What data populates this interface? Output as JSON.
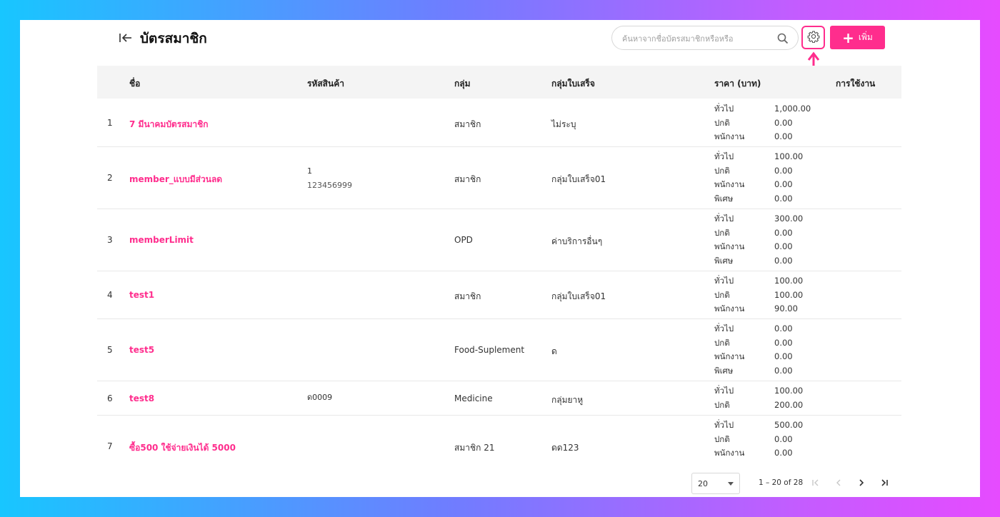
{
  "header": {
    "title": "บัตรสมาชิก",
    "search_placeholder": "ค้นหาจากชื่อบัตรสมาชิกหรือหรือ",
    "add_label": "เพิ่ม"
  },
  "columns": {
    "name": "ชื่อ",
    "code": "รหัสสินค้า",
    "group": "กลุ่ม",
    "receipt_group": "กลุ่มใบเสร็จ",
    "price": "ราคา (บาท)",
    "usage": "การใช้งาน"
  },
  "rows": [
    {
      "index": "1",
      "name": "7 มีนาคมบัตรสมาชิก",
      "code": "",
      "code_sub": "",
      "group": "สมาชิก",
      "receipt_group": "ไม่ระบุ",
      "prices": [
        {
          "label": "ทั่วไป",
          "value": "1,000.00"
        },
        {
          "label": "ปกติ",
          "value": "0.00"
        },
        {
          "label": "พนักงาน",
          "value": "0.00"
        }
      ]
    },
    {
      "index": "2",
      "name": "member_แบบมีส่วนลด",
      "code": "1",
      "code_sub": "123456999",
      "group": "สมาชิก",
      "receipt_group": "กลุ่มใบเสร็จ01",
      "prices": [
        {
          "label": "ทั่วไป",
          "value": "100.00"
        },
        {
          "label": "ปกติ",
          "value": "0.00"
        },
        {
          "label": "พนักงาน",
          "value": "0.00"
        },
        {
          "label": "พิเศษ",
          "value": "0.00"
        }
      ]
    },
    {
      "index": "3",
      "name": "memberLimit",
      "code": "",
      "code_sub": "",
      "group": "OPD",
      "receipt_group": "ค่าบริการอื่นๆ",
      "prices": [
        {
          "label": "ทั่วไป",
          "value": "300.00"
        },
        {
          "label": "ปกติ",
          "value": "0.00"
        },
        {
          "label": "พนักงาน",
          "value": "0.00"
        },
        {
          "label": "พิเศษ",
          "value": "0.00"
        }
      ]
    },
    {
      "index": "4",
      "name": "test1",
      "code": "",
      "code_sub": "",
      "group": "สมาชิก",
      "receipt_group": "กลุ่มใบเสร็จ01",
      "prices": [
        {
          "label": "ทั่วไป",
          "value": "100.00"
        },
        {
          "label": "ปกติ",
          "value": "100.00"
        },
        {
          "label": "พนักงาน",
          "value": "90.00"
        }
      ]
    },
    {
      "index": "5",
      "name": "test5",
      "code": "",
      "code_sub": "",
      "group": "Food-Suplement",
      "receipt_group": "ด",
      "prices": [
        {
          "label": "ทั่วไป",
          "value": "0.00"
        },
        {
          "label": "ปกติ",
          "value": "0.00"
        },
        {
          "label": "พนักงาน",
          "value": "0.00"
        },
        {
          "label": "พิเศษ",
          "value": "0.00"
        }
      ]
    },
    {
      "index": "6",
      "name": "test8",
      "code": "ด0009",
      "code_sub": "",
      "group": "Medicine",
      "receipt_group": "กลุ่มยาหู",
      "prices": [
        {
          "label": "ทั่วไป",
          "value": "100.00"
        },
        {
          "label": "ปกติ",
          "value": "200.00"
        }
      ]
    },
    {
      "index": "7",
      "name": "ซื้อ500 ใช้จ่ายเงินได้ 5000",
      "code": "",
      "code_sub": "",
      "group": "สมาชิก 21",
      "receipt_group": "ดด123",
      "prices": [
        {
          "label": "ทั่วไป",
          "value": "500.00"
        },
        {
          "label": "ปกติ",
          "value": "0.00"
        },
        {
          "label": "พนักงาน",
          "value": "0.00"
        }
      ]
    }
  ],
  "pagination": {
    "page_size": "20",
    "range": "1 – 20 of 28"
  }
}
